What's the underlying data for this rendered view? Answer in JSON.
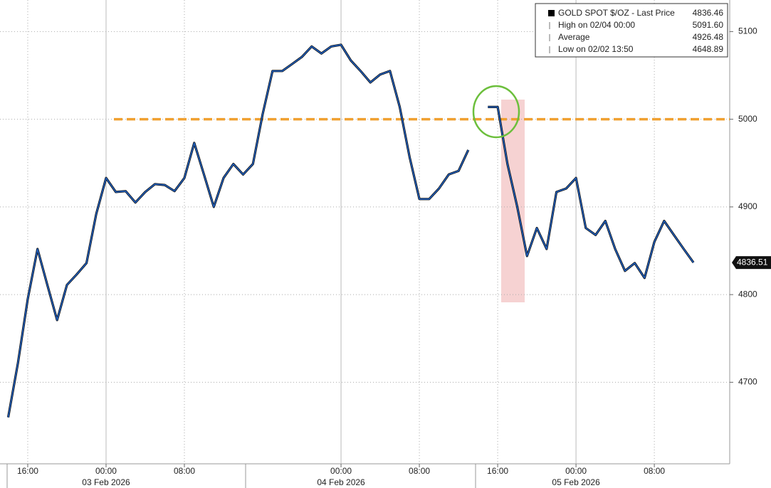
{
  "chart_data": {
    "type": "line",
    "x": [
      "2026-02-02T14:00",
      "2026-02-02T15:00",
      "2026-02-02T16:00",
      "2026-02-02T17:00",
      "2026-02-02T18:00",
      "2026-02-02T19:00",
      "2026-02-02T20:00",
      "2026-02-02T21:00",
      "2026-02-02T22:00",
      "2026-02-02T23:00",
      "2026-02-03T00:00",
      "2026-02-03T01:00",
      "2026-02-03T02:00",
      "2026-02-03T03:00",
      "2026-02-03T04:00",
      "2026-02-03T05:00",
      "2026-02-03T06:00",
      "2026-02-03T07:00",
      "2026-02-03T08:00",
      "2026-02-03T09:00",
      "2026-02-03T10:00",
      "2026-02-03T11:00",
      "2026-02-03T12:00",
      "2026-02-03T13:00",
      "2026-02-03T14:00",
      "2026-02-03T15:00",
      "2026-02-03T16:00",
      "2026-02-03T17:00",
      "2026-02-03T18:00",
      "2026-02-03T19:00",
      "2026-02-03T20:00",
      "2026-02-03T21:00",
      "2026-02-03T22:00",
      "2026-02-03T23:00",
      "2026-02-04T00:00",
      "2026-02-04T01:00",
      "2026-02-04T02:00",
      "2026-02-04T03:00",
      "2026-02-04T04:00",
      "2026-02-04T05:00",
      "2026-02-04T06:00",
      "2026-02-04T07:00",
      "2026-02-04T08:00",
      "2026-02-04T09:00",
      "2026-02-04T10:00",
      "2026-02-04T11:00",
      "2026-02-04T12:00",
      "2026-02-04T13:00",
      "2026-02-04T14:00",
      "2026-02-04T15:00",
      "2026-02-04T16:00",
      "2026-02-04T17:00",
      "2026-02-04T18:00",
      "2026-02-04T19:00",
      "2026-02-04T20:00",
      "2026-02-04T21:00",
      "2026-02-04T22:00",
      "2026-02-04T23:00",
      "2026-02-05T00:00",
      "2026-02-05T01:00",
      "2026-02-05T02:00",
      "2026-02-05T03:00",
      "2026-02-05T04:00",
      "2026-02-05T05:00",
      "2026-02-05T06:00",
      "2026-02-05T07:00",
      "2026-02-05T08:00",
      "2026-02-05T09:00",
      "2026-02-05T10:00",
      "2026-02-05T11:00",
      "2026-02-05T12:00"
    ],
    "series": [
      {
        "name": "GOLD SPOT $/OZ - Last Price",
        "color": "#1f5fbf",
        "values": [
          4660,
          4722,
          4795,
          4852,
          4811,
          4771,
          4811,
          4823,
          4836,
          4892,
          4933,
          4917,
          4918,
          4905,
          4917,
          4926,
          4925,
          4918,
          4933,
          4973,
          4937,
          4900,
          4933,
          4949,
          4937,
          4949,
          5006,
          5055,
          5055,
          5063,
          5071,
          5083,
          5075,
          5083,
          5085,
          5067,
          5055,
          5042,
          5051,
          5055,
          5014,
          4957,
          4909,
          4909,
          4921,
          4937,
          4941,
          4965,
          null,
          5014,
          5014,
          4949,
          4900,
          4844,
          4876,
          4852,
          4917,
          4921,
          4933,
          4876,
          4868,
          4884,
          4852,
          4827,
          4836,
          4819,
          4860,
          4884,
          4868,
          4852,
          4836.51
        ]
      }
    ],
    "last_tag": "4836.51",
    "legend": [
      {
        "label": "GOLD SPOT $/OZ - Last Price",
        "value": "4836.46"
      },
      {
        "label": "High on 02/04 00:00",
        "value": "5091.60"
      },
      {
        "label": "Average",
        "value": "4926.48"
      },
      {
        "label": "Low on 02/02 13:50",
        "value": "4648.89"
      }
    ],
    "reference_line": 5000,
    "ylim": [
      4607,
      5136
    ],
    "yticks": [
      4700,
      4800,
      4900,
      5000,
      5100
    ],
    "xlim": [
      "2026-02-02T13:10",
      "2026-02-05T15:42"
    ],
    "xticks": [
      {
        "value": "2026-02-02T16:00",
        "label": "16:00"
      },
      {
        "value": "2026-02-03T00:00",
        "label": "00:00"
      },
      {
        "value": "2026-02-03T08:00",
        "label": "08:00"
      },
      {
        "value": "2026-02-04T00:00",
        "label": "00:00"
      },
      {
        "value": "2026-02-04T08:00",
        "label": "08:00"
      },
      {
        "value": "2026-02-04T16:00",
        "label": "16:00"
      },
      {
        "value": "2026-02-05T00:00",
        "label": "00:00"
      },
      {
        "value": "2026-02-05T08:00",
        "label": "08:00"
      }
    ],
    "date_labels": [
      {
        "value": "2026-02-03T00:00",
        "label": "03 Feb 2026"
      },
      {
        "value": "2026-02-04T00:00",
        "label": "04 Feb 2026"
      },
      {
        "value": "2026-02-05T00:00",
        "label": "05 Feb 2026"
      }
    ],
    "grid": true
  }
}
